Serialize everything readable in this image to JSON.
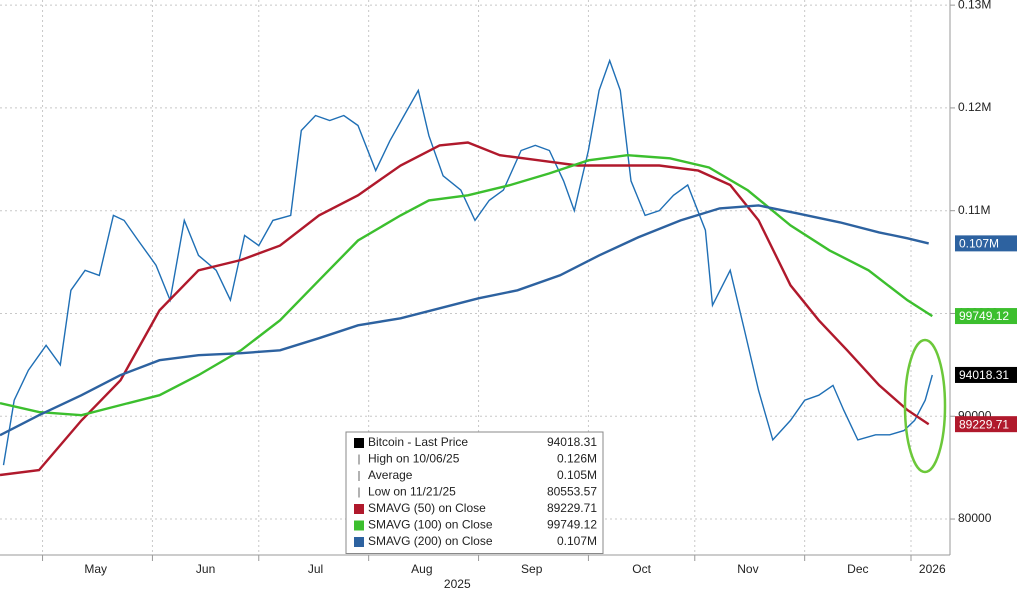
{
  "chart_data": {
    "type": "line",
    "xlim": [
      0,
      268
    ],
    "xticks": [
      {
        "value": 27,
        "label": "May"
      },
      {
        "value": 58,
        "label": "Jun"
      },
      {
        "value": 89,
        "label": "Jul"
      },
      {
        "value": 119,
        "label": "Aug"
      },
      {
        "value": 150,
        "label": "Sep"
      },
      {
        "value": 181,
        "label": "Oct"
      },
      {
        "value": 211,
        "label": "Nov"
      },
      {
        "value": 242,
        "label": "Dec"
      },
      {
        "value": 263,
        "label": "2026"
      }
    ],
    "year_label": {
      "value": 129,
      "label": "2025"
    },
    "xgrid": [
      12,
      43,
      73,
      104,
      135,
      166,
      196,
      227,
      257
    ],
    "ylim": [
      76500,
      130500
    ],
    "yticks": [
      80000,
      90000,
      100000,
      {
        "value": 110000,
        "label": "0.11M"
      },
      {
        "value": 120000,
        "label": "0.12M"
      },
      {
        "value": 130000,
        "label": "0.13M"
      }
    ],
    "grid": true,
    "series": [
      {
        "name": "Bitcoin - Last Price",
        "color": "#1f6fb5",
        "tag_color": "#000000",
        "last_label": "94018.31",
        "x": [
          1,
          4,
          8,
          13,
          17,
          20,
          24,
          28,
          32,
          35,
          39,
          44,
          48,
          52,
          56,
          61,
          65,
          69,
          73,
          77,
          82,
          85,
          89,
          93,
          97,
          101,
          106,
          110,
          114,
          118,
          121,
          125,
          130,
          134,
          138,
          142,
          147,
          151,
          155,
          159,
          162,
          166,
          169,
          172,
          175,
          178,
          182,
          186,
          190,
          194,
          199,
          201,
          206,
          210,
          214,
          218,
          223,
          227,
          231,
          235,
          238,
          242,
          247,
          251,
          255,
          258,
          261,
          263
        ],
        "values": [
          85250,
          91560,
          94480,
          96900,
          95000,
          102250,
          104200,
          103700,
          109540,
          109060,
          107100,
          104700,
          101300,
          109060,
          105650,
          104200,
          101300,
          107600,
          106600,
          109060,
          109540,
          117800,
          119260,
          118780,
          119260,
          118290,
          113900,
          116800,
          119260,
          121700,
          117300,
          113400,
          112000,
          109060,
          111000,
          112000,
          115860,
          116350,
          115860,
          112900,
          110000,
          115860,
          121700,
          124600,
          121700,
          112900,
          109540,
          110000,
          111500,
          112500,
          108100,
          100800,
          104200,
          98400,
          92500,
          87700,
          89600,
          91560,
          92050,
          93000,
          90600,
          87700,
          88200,
          88200,
          88600,
          89600,
          91560,
          94018.31
        ]
      },
      {
        "name": "SMAVG (50)  on Close",
        "color": "#b0192c",
        "tag_color": "#b0192c",
        "last_label": "89229.71",
        "x": [
          0,
          11,
          23,
          34,
          45,
          56,
          68,
          79,
          90,
          101,
          113,
          124,
          132,
          141,
          152,
          163,
          175,
          186,
          197,
          206,
          214,
          223,
          231,
          239,
          248,
          256,
          262
        ],
        "values": [
          84280,
          84760,
          89600,
          93500,
          100300,
          104200,
          105200,
          106600,
          109540,
          111500,
          114400,
          116350,
          116640,
          115400,
          114900,
          114400,
          114400,
          114400,
          113900,
          112500,
          109060,
          102740,
          99340,
          96420,
          93020,
          90600,
          89229.71
        ]
      },
      {
        "name": "SMAVG (100)  on Close",
        "color": "#3cbf2e",
        "tag_color": "#3cbf2e",
        "last_label": "99749.12",
        "x": [
          0,
          11,
          23,
          34,
          45,
          56,
          68,
          79,
          90,
          101,
          113,
          121,
          132,
          144,
          155,
          166,
          177,
          189,
          200,
          211,
          223,
          234,
          245,
          256,
          263
        ],
        "values": [
          91270,
          90400,
          90100,
          91080,
          92050,
          94000,
          96420,
          99340,
          103230,
          107100,
          109540,
          111000,
          111500,
          112500,
          113630,
          114900,
          115400,
          115100,
          114200,
          111970,
          108570,
          106140,
          104200,
          101280,
          99749.12
        ]
      },
      {
        "name": "SMAVG (200)  on Close",
        "color": "#2d62a0",
        "tag_color": "#2d62a0",
        "last_label": "0.107M",
        "x": [
          0,
          11,
          23,
          34,
          45,
          56,
          68,
          79,
          90,
          101,
          113,
          124,
          135,
          146,
          158,
          169,
          180,
          192,
          203,
          214,
          225,
          237,
          248,
          256,
          262
        ],
        "values": [
          88160,
          90100,
          92050,
          94000,
          95450,
          95940,
          96130,
          96420,
          97590,
          98850,
          99530,
          100500,
          101480,
          102250,
          103710,
          105650,
          107400,
          109060,
          110220,
          110520,
          109740,
          108860,
          107890,
          107310,
          106820
        ]
      }
    ],
    "legend": [
      {
        "label": "Bitcoin - Last Price",
        "value": "94018.31",
        "color": "#000000"
      },
      {
        "label": "High on 10/06/25",
        "value": "0.126M"
      },
      {
        "label": "Average",
        "value": "0.105M"
      },
      {
        "label": "Low on 11/21/25",
        "value": "80553.57"
      },
      {
        "label": "SMAVG (50)  on Close",
        "value": "89229.71",
        "color": "#b0192c"
      },
      {
        "label": "SMAVG (100)  on Close",
        "value": "99749.12",
        "color": "#3cbf2e"
      },
      {
        "label": "SMAVG (200)  on Close",
        "value": "0.107M",
        "color": "#2d62a0"
      }
    ]
  }
}
